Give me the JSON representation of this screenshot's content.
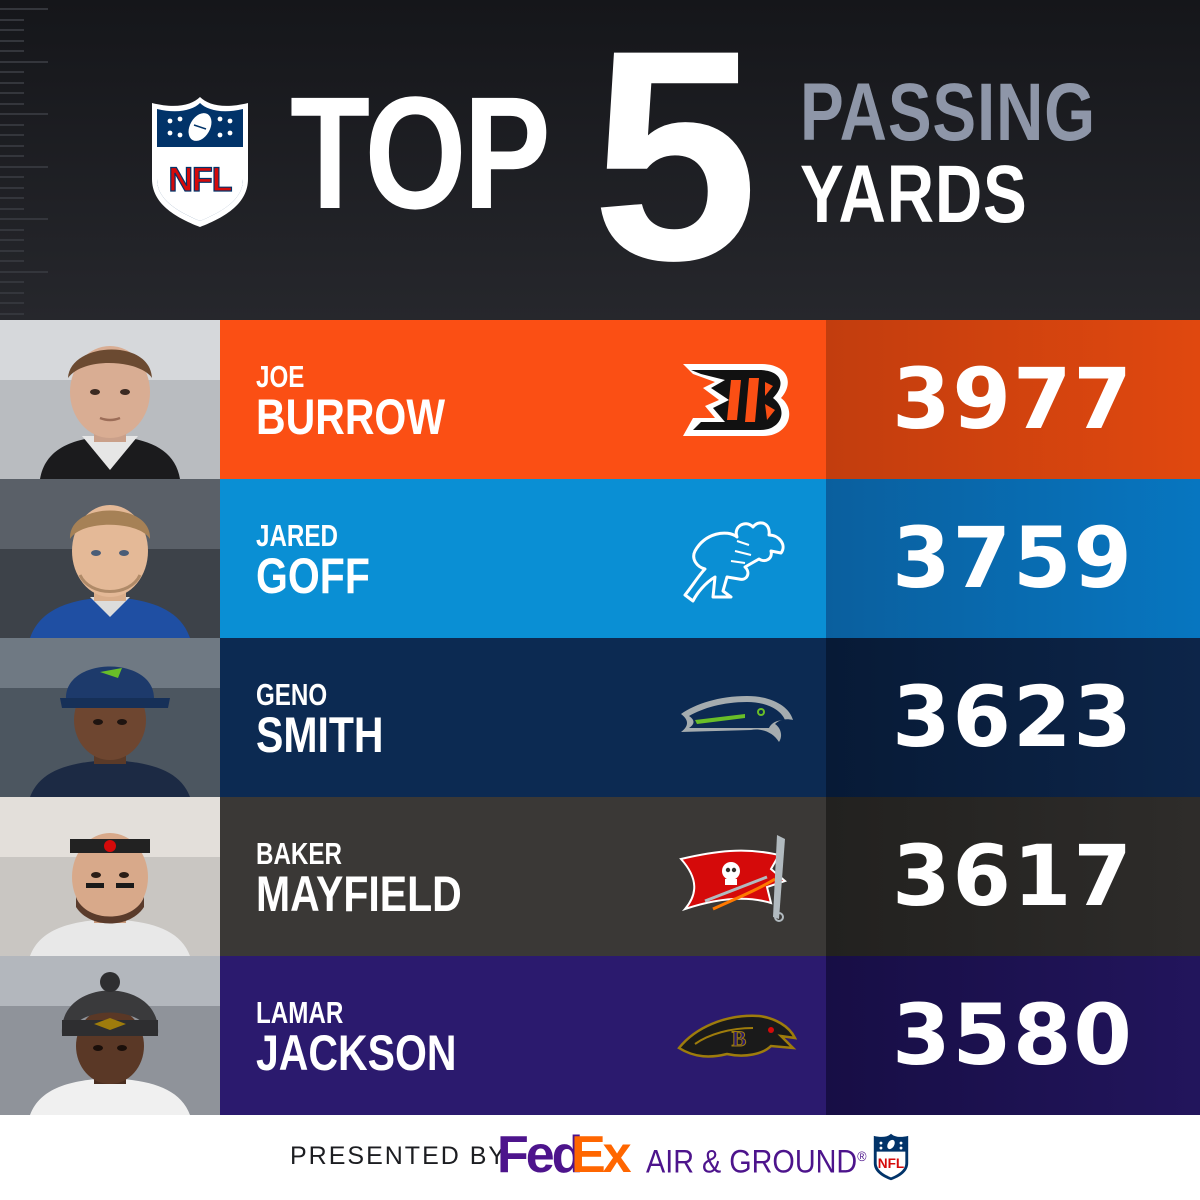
{
  "header": {
    "brand": "NFL",
    "title_top": "TOP",
    "title_number": "5",
    "title_stat_line1": "PASSING",
    "title_stat_line2": "YARDS"
  },
  "players": [
    {
      "first_name": "JOE",
      "last_name": "BURROW",
      "team_logo_icon": "bengals-logo-icon",
      "passing_yards": "3977",
      "colors": {
        "name_panel": "#fb4f14",
        "value_panel_top": "#c23d0e",
        "value_panel_bottom": "#e0480f"
      }
    },
    {
      "first_name": "JARED",
      "last_name": "GOFF",
      "team_logo_icon": "lions-logo-icon",
      "passing_yards": "3759",
      "colors": {
        "name_panel": "#0a8fd4",
        "value_panel_top": "#0a5f9e",
        "value_panel_bottom": "#0776c0"
      }
    },
    {
      "first_name": "GENO",
      "last_name": "SMITH",
      "team_logo_icon": "seahawks-logo-icon",
      "passing_yards": "3623",
      "colors": {
        "name_panel": "#0c2a52",
        "value_panel_top": "#071a36",
        "value_panel_bottom": "#0d2549"
      }
    },
    {
      "first_name": "BAKER",
      "last_name": "MAYFIELD",
      "team_logo_icon": "buccaneers-logo-icon",
      "passing_yards": "3617",
      "colors": {
        "name_panel": "#3a3836",
        "value_panel_top": "#22211f",
        "value_panel_bottom": "#2e2c2a"
      }
    },
    {
      "first_name": "LAMAR",
      "last_name": "JACKSON",
      "team_logo_icon": "ravens-logo-icon",
      "passing_yards": "3580",
      "colors": {
        "name_panel": "#2b1a6e",
        "value_panel_top": "#170e45",
        "value_panel_bottom": "#22155c"
      }
    }
  ],
  "footer": {
    "presented_by": "PRESENTED BY",
    "sponsor_fed": "Fed",
    "sponsor_ex": "Ex",
    "sponsor_tagline": "AIR & GROUND",
    "sponsor_registered_mark": "®",
    "colors": {
      "fedex_purple": "#4d148c",
      "fedex_orange": "#ff6600"
    }
  },
  "colors": {
    "background": "#1c1d21",
    "title_white": "#ffffff",
    "title_gray": "#8e96a8",
    "nfl_blue": "#013369",
    "nfl_red": "#d50a0a"
  }
}
